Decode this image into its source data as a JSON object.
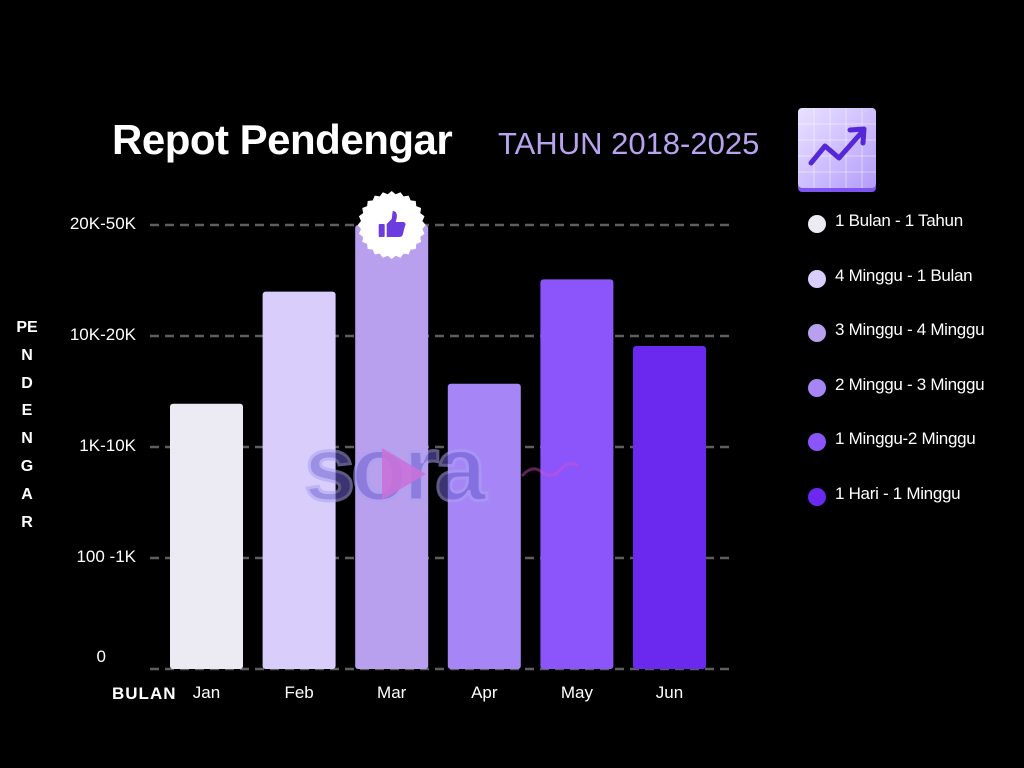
{
  "header": {
    "title": "Repot Pendengar",
    "subtitle": "TAHUN 2018-2025",
    "icon": "chart-increasing-icon"
  },
  "chart_data": {
    "type": "bar",
    "title": "Repot Pendengar",
    "subtitle": "TAHUN 2018-2025",
    "xlabel": "BULAN",
    "ylabel": "PENDENGAR",
    "categories": [
      "Jan",
      "Feb",
      "Mar",
      "Apr",
      "May",
      "Jun"
    ],
    "y_tick_labels": [
      "0",
      "100 -1K",
      "1K-10K",
      "10K-20K",
      "20K-50K"
    ],
    "ylim": [
      0,
      4
    ],
    "values": [
      2.39,
      3.4,
      4.0,
      2.57,
      3.51,
      2.91
    ],
    "bar_colors": [
      "#ecebf3",
      "#d9cdfc",
      "#b9a0ef",
      "#a685f7",
      "#8b55fb",
      "#6b28ee"
    ],
    "grid": true,
    "grid_style": "dashed",
    "legend_position": "right",
    "legend": [
      {
        "label": "1 Bulan - 1 Tahun",
        "color": "#ecebf3"
      },
      {
        "label": "4 Minggu - 1 Bulan",
        "color": "#d9cdfc"
      },
      {
        "label": "3 Minggu - 4 Minggu",
        "color": "#b9a0ef"
      },
      {
        "label": "2 Minggu - 3 Minggu",
        "color": "#a685f7"
      },
      {
        "label": "1 Minggu-2 Minggu",
        "color": "#8b55fb"
      },
      {
        "label": "1 Hari - 1 Minggu",
        "color": "#6b28ee"
      }
    ],
    "annotation": {
      "category": "Mar",
      "icon": "thumbs-up-icon"
    }
  },
  "watermark": {
    "text": "sora"
  }
}
